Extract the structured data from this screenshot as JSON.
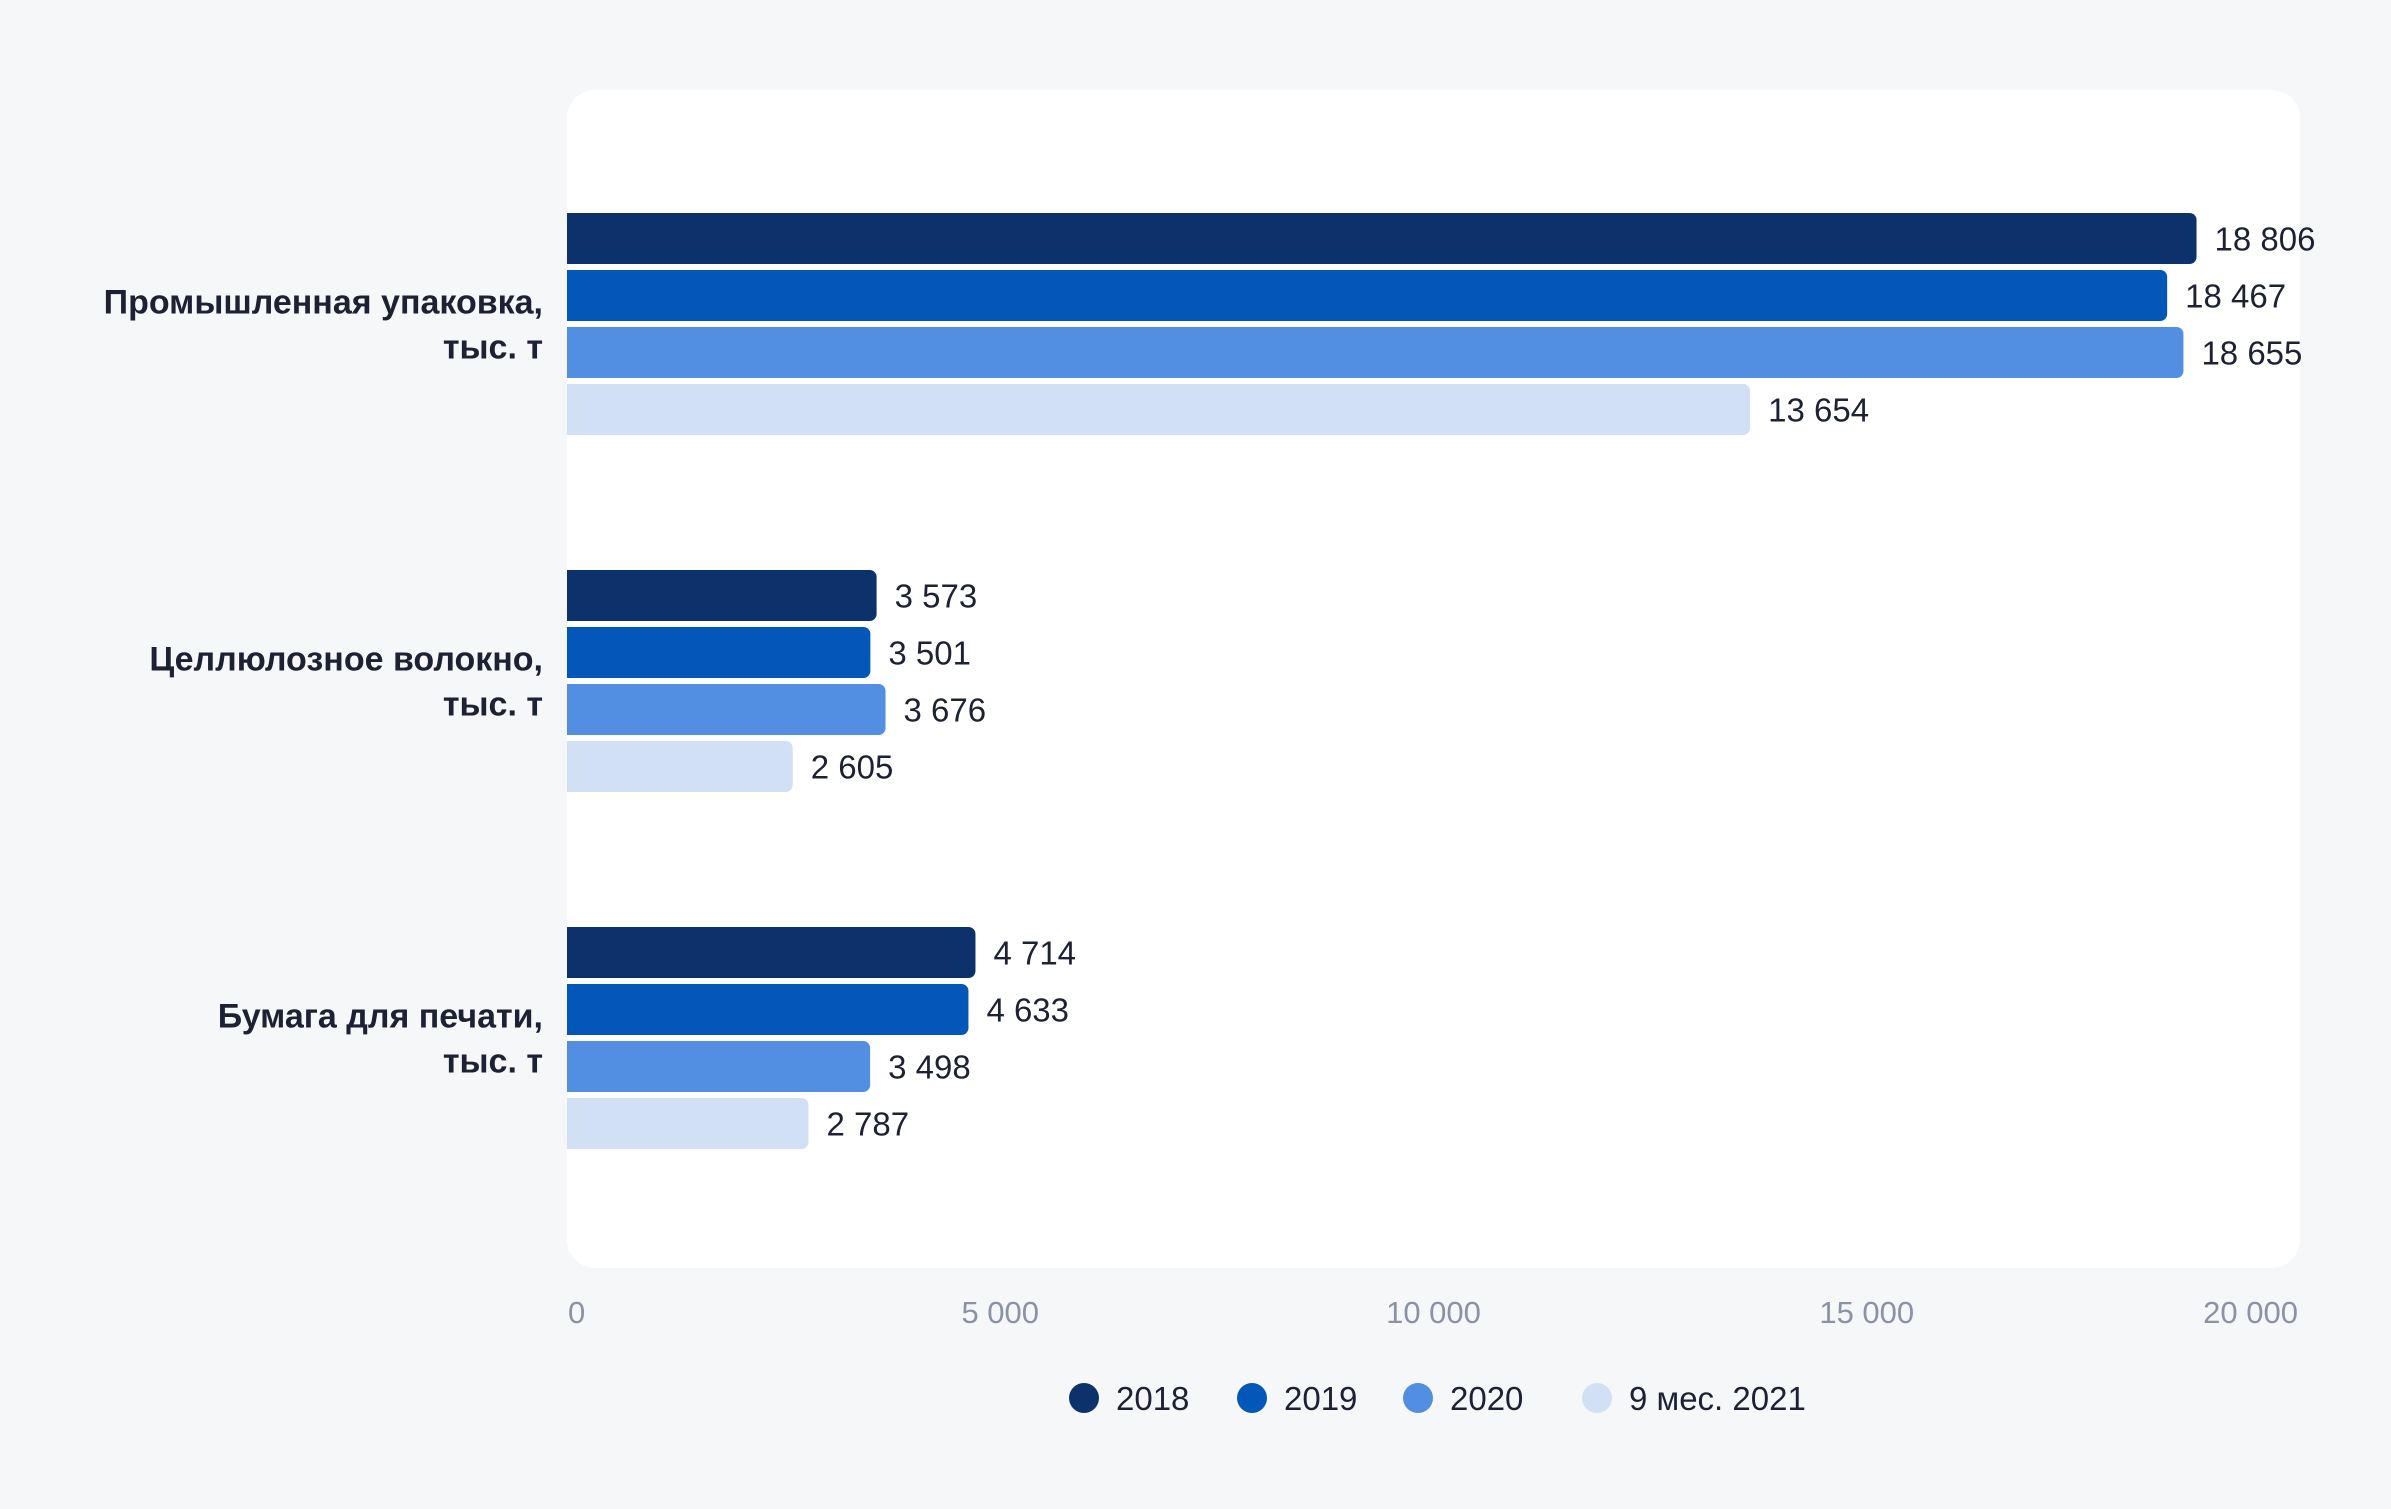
{
  "chart_data": {
    "type": "bar",
    "orientation": "horizontal",
    "title": "",
    "xlabel": "",
    "ylabel": "",
    "xlim": [
      0,
      20000
    ],
    "x_ticks": [
      {
        "value": 0,
        "label": "0"
      },
      {
        "value": 5000,
        "label": "5 000"
      },
      {
        "value": 10000,
        "label": "10 000"
      },
      {
        "value": 15000,
        "label": "15 000"
      },
      {
        "value": 20000,
        "label": "20 000"
      }
    ],
    "grid": false,
    "legend_position": "bottom-center",
    "categories": [
      {
        "lines": [
          "Промышленная упаковка,",
          "тыс. т"
        ]
      },
      {
        "lines": [
          "Целлюлозное волокно,",
          "тыс. т"
        ]
      },
      {
        "lines": [
          "Бумага для печати,",
          "тыс. т"
        ]
      }
    ],
    "series": [
      {
        "name": "2018",
        "color": "#0d326b",
        "values": [
          18806,
          3573,
          4714
        ],
        "labels": [
          "18 806",
          "3 573",
          "4 714"
        ]
      },
      {
        "name": "2019",
        "color": "#0257b8",
        "values": [
          18467,
          3501,
          4633
        ],
        "labels": [
          "18 467",
          "3 501",
          "4 633"
        ]
      },
      {
        "name": "2020",
        "color": "#528fe2",
        "values": [
          18655,
          3676,
          3498
        ],
        "labels": [
          "18 655",
          "3 676",
          "3 498"
        ]
      },
      {
        "name": "9 мес. 2021",
        "color": "#d1e0f4",
        "values": [
          13654,
          2605,
          2787
        ],
        "labels": [
          "13 654",
          "2 605",
          "2 787"
        ]
      }
    ]
  }
}
